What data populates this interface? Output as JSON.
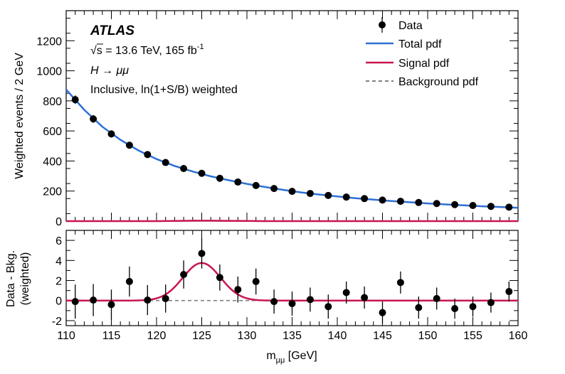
{
  "chart_data": [
    {
      "type": "scatter",
      "panel": "main",
      "ylabel": "Weighted events / 2 GeV",
      "xlim": [
        110,
        160
      ],
      "ylim": [
        0,
        1400
      ],
      "yticks": [
        0,
        200,
        400,
        600,
        800,
        1000,
        1200
      ],
      "annotations": {
        "experiment": "ATLAS",
        "energy": "√s = 13.6 TeV, 165 fb",
        "energy_sup": "-1",
        "process": "H → μμ",
        "selection": "Inclusive, ln(1+S/B) weighted"
      },
      "legend": {
        "placement": "top-right",
        "entries": [
          "Data",
          "Total pdf",
          "Signal pdf",
          "Background pdf"
        ]
      },
      "colors": {
        "total": "#2e6fd4",
        "signal": "#c8164f",
        "background": "#808080",
        "data": "#000000"
      },
      "series": [
        {
          "name": "Data",
          "style": "points",
          "x": [
            111,
            113,
            115,
            117,
            119,
            121,
            123,
            125,
            127,
            129,
            131,
            133,
            135,
            137,
            139,
            141,
            143,
            145,
            147,
            149,
            151,
            153,
            155,
            157,
            159
          ],
          "values": [
            808,
            680,
            580,
            505,
            443,
            390,
            350,
            318,
            285,
            260,
            237,
            217,
            198,
            184,
            171,
            160,
            150,
            140,
            132,
            124,
            117,
            110,
            104,
            98,
            93
          ],
          "errors": [
            28,
            26,
            24,
            22,
            21,
            20,
            19,
            18,
            17,
            16,
            15,
            15,
            14,
            14,
            13,
            13,
            12,
            12,
            11,
            11,
            11,
            10,
            10,
            10,
            10
          ]
        },
        {
          "name": "Total pdf",
          "style": "line",
          "x": [
            110,
            112,
            114,
            116,
            118,
            120,
            122,
            124,
            126,
            128,
            130,
            132,
            134,
            136,
            138,
            140,
            142,
            144,
            146,
            148,
            150,
            152,
            154,
            156,
            158,
            160
          ],
          "values": [
            875,
            740,
            628,
            541,
            470,
            413,
            367,
            330,
            298,
            272,
            248,
            227,
            208,
            191,
            177,
            164,
            153,
            143,
            134,
            126,
            118,
            111,
            105,
            99,
            94,
            89
          ]
        },
        {
          "name": "Signal pdf",
          "style": "line",
          "x": [
            110,
            112,
            114,
            116,
            118,
            120,
            122,
            124,
            126,
            128,
            130,
            132,
            134,
            136,
            138,
            140,
            142,
            144,
            146,
            148,
            150,
            152,
            154,
            156,
            158,
            160
          ],
          "values": [
            0,
            0,
            0,
            0,
            0,
            0,
            1,
            3,
            3,
            2,
            1,
            0,
            0,
            0,
            0,
            0,
            0,
            0,
            0,
            0,
            0,
            0,
            0,
            0,
            0,
            0
          ]
        }
      ]
    },
    {
      "type": "scatter",
      "panel": "ratio",
      "xlabel_main": "m",
      "xlabel_sub": "μμ",
      "xlabel_unit": " [GeV]",
      "ylabel_lines": [
        "Data - Bkg.",
        "(weighted)"
      ],
      "xlim": [
        110,
        160
      ],
      "ylim": [
        -2.5,
        7
      ],
      "xticks": [
        110,
        115,
        120,
        125,
        130,
        135,
        140,
        145,
        150,
        155,
        160
      ],
      "yticks": [
        -2,
        0,
        2,
        4,
        6
      ],
      "series": [
        {
          "name": "Data - Bkg.",
          "style": "points",
          "x": [
            111,
            113,
            115,
            117,
            119,
            121,
            123,
            125,
            127,
            129,
            131,
            133,
            135,
            137,
            139,
            141,
            143,
            145,
            147,
            149,
            151,
            153,
            155,
            157,
            159
          ],
          "values": [
            -0.1,
            0.05,
            -0.4,
            1.9,
            0.05,
            0.2,
            2.6,
            4.7,
            2.3,
            1.1,
            1.9,
            -0.1,
            -0.3,
            0.1,
            -0.6,
            0.8,
            0.3,
            -1.2,
            1.8,
            -0.7,
            0.2,
            -0.8,
            -0.6,
            -0.2,
            0.9
          ],
          "errors": [
            1.7,
            1.6,
            1.5,
            1.5,
            1.5,
            1.4,
            1.4,
            1.5,
            1.3,
            1.3,
            1.3,
            1.2,
            1.2,
            1.2,
            1.2,
            1.1,
            1.1,
            1.1,
            1.1,
            1.1,
            1.1,
            1.0,
            1.0,
            1.0,
            1.0
          ]
        },
        {
          "name": "Signal pdf",
          "style": "line",
          "peak_x": 125,
          "peak_y": 3.75,
          "sigma": 2.1
        },
        {
          "name": "Background pdf",
          "style": "dashed",
          "value": 0
        }
      ]
    }
  ]
}
